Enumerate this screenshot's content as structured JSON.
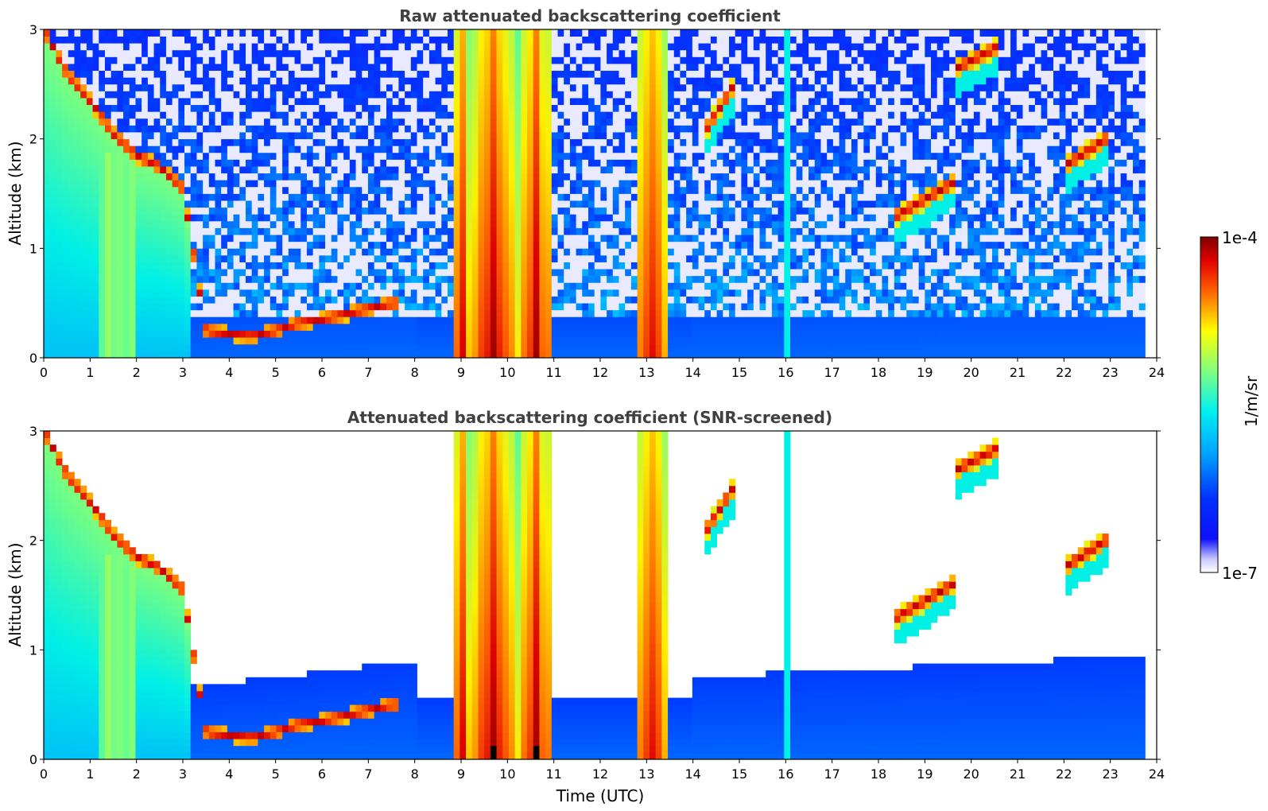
{
  "chart_data": {
    "type": "heatmap",
    "colormap": "jet",
    "xlim": [
      0,
      24
    ],
    "x_ticks": [
      "0",
      "1",
      "2",
      "3",
      "4",
      "5",
      "6",
      "7",
      "8",
      "9",
      "10",
      "11",
      "12",
      "13",
      "14",
      "15",
      "16",
      "17",
      "18",
      "19",
      "20",
      "21",
      "22",
      "23",
      "24"
    ],
    "xlabel": "Time (UTC)",
    "colorbar": {
      "label": "1/m/sr",
      "max_label": "1e-4",
      "min_label": "1e-7",
      "scale": "log",
      "range": [
        1e-07,
        0.0001
      ]
    },
    "panels": [
      {
        "title": "Raw attenuated backscattering coefficient",
        "ylabel": "Altitude (km)",
        "ylim": [
          0,
          3
        ],
        "y_ticks": [
          "0",
          "1",
          "2",
          "3"
        ],
        "screened": false
      },
      {
        "title": "Attenuated backscattering coefficient (SNR-screened)",
        "ylabel": "Altitude (km)",
        "ylim": [
          0,
          3
        ],
        "y_ticks": [
          "0",
          "1",
          "2",
          "3"
        ],
        "screened": true
      }
    ],
    "data_end_time": 23.75,
    "features": {
      "boundary_layer_top_km": [
        [
          0,
          3.0
        ],
        [
          0.5,
          2.6
        ],
        [
          1,
          2.35
        ],
        [
          1.5,
          2.05
        ],
        [
          2,
          1.85
        ],
        [
          2.5,
          1.75
        ],
        [
          3,
          1.55
        ],
        [
          3.5,
          0.25
        ],
        [
          4,
          0.22
        ],
        [
          4.5,
          0.2
        ],
        [
          5,
          0.25
        ],
        [
          5.5,
          0.32
        ],
        [
          6,
          0.35
        ],
        [
          6.5,
          0.4
        ],
        [
          7,
          0.45
        ],
        [
          7.5,
          0.5
        ]
      ],
      "thick_cloud_intervals_h": [
        [
          8.8,
          9.2
        ],
        [
          9.2,
          10.2
        ],
        [
          10.2,
          11.0
        ],
        [
          12.8,
          13.5
        ]
      ],
      "elevated_cloud_layers": [
        {
          "t": [
            18.4,
            19.6
          ],
          "km": [
            1.3,
            1.6
          ]
        },
        {
          "t": [
            19.7,
            20.6
          ],
          "km": [
            2.65,
            2.85
          ]
        },
        {
          "t": [
            22.0,
            22.9
          ],
          "km": [
            1.75,
            2.0
          ]
        },
        {
          "t": [
            14.3,
            14.9
          ],
          "km": [
            2.1,
            2.5
          ]
        }
      ]
    }
  }
}
